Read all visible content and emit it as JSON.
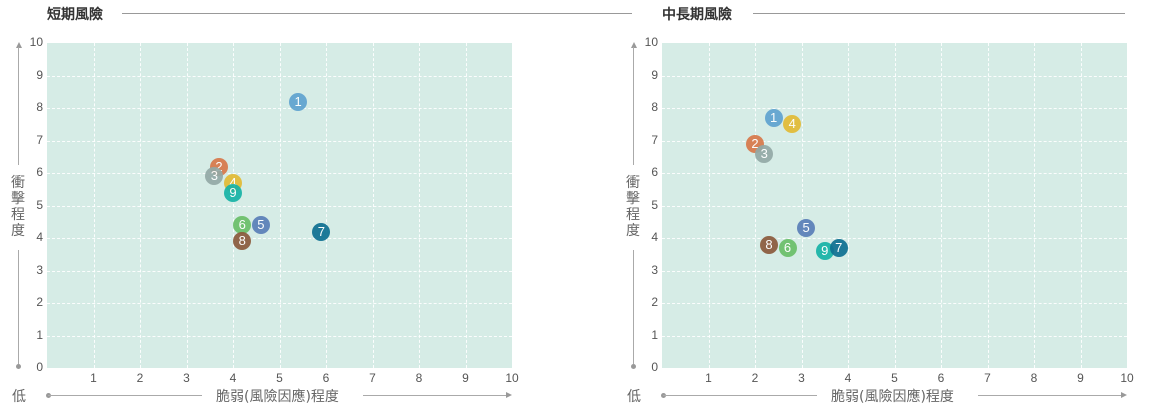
{
  "colors": {
    "plot_bg": "#d6ece6",
    "p1": "#5fa3d0",
    "p2": "#d8784a",
    "p3": "#93a9a6",
    "p4": "#e2bb35",
    "p5": "#5a7fb8",
    "p6": "#6abf69",
    "p7": "#0e7092",
    "p8": "#8b5a3c",
    "p9": "#17b3a6"
  },
  "chart_data": [
    {
      "type": "scatter",
      "title": "短期風險",
      "xlabel": "脆弱(風險因應)程度",
      "ylabel": "衝擊程度",
      "low_label": "低",
      "xlim": [
        0,
        10
      ],
      "ylim": [
        0,
        10
      ],
      "xticks": [
        "1",
        "2",
        "3",
        "4",
        "5",
        "6",
        "7",
        "8",
        "9",
        "10"
      ],
      "yticks": [
        "0",
        "1",
        "2",
        "3",
        "4",
        "5",
        "6",
        "7",
        "8",
        "9",
        "10"
      ],
      "grid": true,
      "points": [
        {
          "label": "1",
          "x": 5.4,
          "y": 8.2
        },
        {
          "label": "2",
          "x": 3.7,
          "y": 6.2
        },
        {
          "label": "3",
          "x": 3.6,
          "y": 5.9
        },
        {
          "label": "4",
          "x": 4.0,
          "y": 5.7
        },
        {
          "label": "9",
          "x": 4.0,
          "y": 5.4
        },
        {
          "label": "6",
          "x": 4.2,
          "y": 4.4
        },
        {
          "label": "5",
          "x": 4.6,
          "y": 4.4
        },
        {
          "label": "8",
          "x": 4.2,
          "y": 3.9
        },
        {
          "label": "7",
          "x": 5.9,
          "y": 4.2
        }
      ]
    },
    {
      "type": "scatter",
      "title": "中長期風險",
      "xlabel": "脆弱(風險因應)程度",
      "ylabel": "衝擊程度",
      "low_label": "低",
      "xlim": [
        0,
        10
      ],
      "ylim": [
        0,
        10
      ],
      "xticks": [
        "1",
        "2",
        "3",
        "4",
        "5",
        "6",
        "7",
        "8",
        "9",
        "10"
      ],
      "yticks": [
        "0",
        "1",
        "2",
        "3",
        "4",
        "5",
        "6",
        "7",
        "8",
        "9",
        "10"
      ],
      "grid": true,
      "points": [
        {
          "label": "1",
          "x": 2.4,
          "y": 7.7
        },
        {
          "label": "4",
          "x": 2.8,
          "y": 7.5
        },
        {
          "label": "2",
          "x": 2.0,
          "y": 6.9
        },
        {
          "label": "3",
          "x": 2.2,
          "y": 6.6
        },
        {
          "label": "5",
          "x": 3.1,
          "y": 4.3
        },
        {
          "label": "8",
          "x": 2.3,
          "y": 3.8
        },
        {
          "label": "6",
          "x": 2.7,
          "y": 3.7
        },
        {
          "label": "9",
          "x": 3.5,
          "y": 3.6
        },
        {
          "label": "7",
          "x": 3.8,
          "y": 3.7
        }
      ]
    }
  ]
}
